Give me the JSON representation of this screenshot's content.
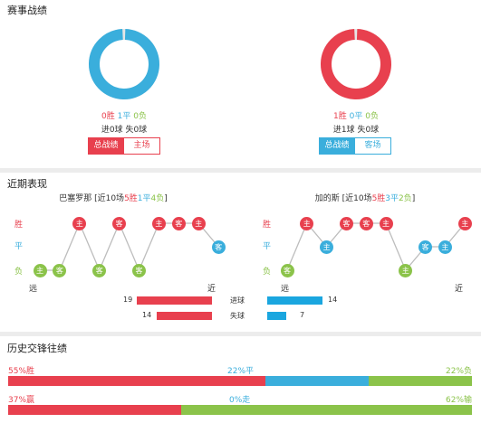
{
  "colors": {
    "win": "#e8404e",
    "draw": "#3aaedc",
    "loss": "#8bc34a",
    "gray": "#555555"
  },
  "match_record": {
    "title": "赛事战绩",
    "home": {
      "win_count": "0胜",
      "draw_count": "1平",
      "loss_count": "0负",
      "goals": "进0球",
      "conceded": "失0球",
      "donut_percent": 100,
      "donut_color": "#3aaedc",
      "tabs": [
        {
          "label": "总战绩",
          "active": true
        },
        {
          "label": "主场",
          "active": false
        }
      ]
    },
    "away": {
      "win_count": "1胜",
      "draw_count": "0平",
      "loss_count": "0负",
      "goals": "进1球",
      "conceded": "失0球",
      "donut_percent": 100,
      "donut_color": "#e8404e",
      "tabs": [
        {
          "label": "总战绩",
          "active": true
        },
        {
          "label": "客场",
          "active": false
        }
      ]
    }
  },
  "recent_form": {
    "title": "近期表现",
    "y_labels": {
      "win": "胜",
      "draw": "平",
      "loss": "负"
    },
    "x_labels": {
      "far": "远",
      "near": "近"
    },
    "home": {
      "team_name": "巴塞罗那",
      "summary_prefix": " [近10场",
      "wins": "5胜",
      "draws": "1平",
      "losses": "4负",
      "summary_suffix": "]",
      "games": [
        {
          "result": "loss",
          "venue": "主"
        },
        {
          "result": "loss",
          "venue": "客"
        },
        {
          "result": "win",
          "venue": "主"
        },
        {
          "result": "loss",
          "venue": "客"
        },
        {
          "result": "win",
          "venue": "客"
        },
        {
          "result": "loss",
          "venue": "客"
        },
        {
          "result": "win",
          "venue": "主"
        },
        {
          "result": "win",
          "venue": "客"
        },
        {
          "result": "win",
          "venue": "主"
        },
        {
          "result": "draw",
          "venue": "客"
        }
      ]
    },
    "away": {
      "team_name": "加的斯",
      "summary_prefix": " [近10场",
      "wins": "5胜",
      "draws": "3平",
      "losses": "2负",
      "summary_suffix": "]",
      "games": [
        {
          "result": "loss",
          "venue": "客"
        },
        {
          "result": "win",
          "venue": "主"
        },
        {
          "result": "draw",
          "venue": "主"
        },
        {
          "result": "win",
          "venue": "客"
        },
        {
          "result": "win",
          "venue": "客"
        },
        {
          "result": "win",
          "venue": "主"
        },
        {
          "result": "loss",
          "venue": "主"
        },
        {
          "result": "draw",
          "venue": "客"
        },
        {
          "result": "draw",
          "venue": "主"
        },
        {
          "result": "win",
          "venue": "主"
        }
      ]
    },
    "goals_label": "进球",
    "conceded_label": "失球",
    "home_goals": 19,
    "home_conceded": 14,
    "away_goals": 14,
    "away_conceded": 7,
    "bar_max": 19
  },
  "history": {
    "title": "历史交锋往绩",
    "row1": {
      "win": "55%胜",
      "draw": "22%平",
      "loss": "22%负",
      "win_pct": 55,
      "draw_pct": 22,
      "loss_pct": 22
    },
    "row2": {
      "win": "37%赢",
      "draw": "0%走",
      "loss": "62%输",
      "win_pct": 37,
      "draw_pct": 0,
      "loss_pct": 62
    }
  }
}
